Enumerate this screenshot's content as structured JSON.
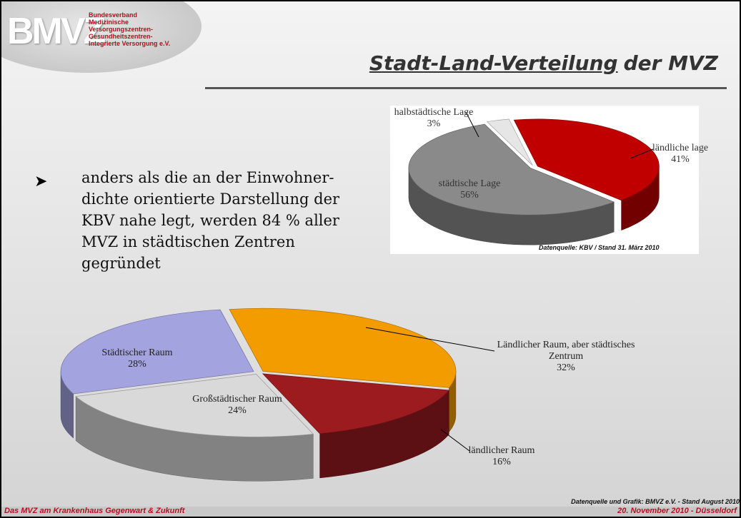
{
  "logo": {
    "mark": "BMVZ",
    "lines": [
      "Bundesverband",
      "Medizinische",
      "Versorgungszentren-",
      "Gesundheitszentren-",
      "Integrierte Versorgung e.V."
    ]
  },
  "title": {
    "underlined": "Stadt-Land-Verteilung",
    "rest": "der MVZ"
  },
  "bullet": "anders als die an der Einwohner-dichte orientierte Darstellung der KBV nahe legt, werden 84 % aller MVZ in städtischen Zentren gegründet",
  "chart_data": [
    {
      "type": "pie",
      "categories": [
        "halbstädtische Lage",
        "ländliche lage",
        "städtische Lage"
      ],
      "values": [
        3,
        41,
        56
      ],
      "value_labels": [
        "3%",
        "41%",
        "56%"
      ],
      "colors": [
        "#e6e6e6",
        "#c00000",
        "#8a8a8a"
      ],
      "source": "Datenquelle: KBV / Stand 31. März 2010"
    },
    {
      "type": "pie",
      "categories": [
        "Ländlicher Raum, aber städtisches Zentrum",
        "ländlicher Raum",
        "Großstädtischer Raum",
        "Städtischer Raum"
      ],
      "values": [
        32,
        16,
        24,
        28
      ],
      "value_labels": [
        "32%",
        "16%",
        "24%",
        "28%"
      ],
      "colors": [
        "#f39c00",
        "#9b1b1f",
        "#d9d9d9",
        "#a3a3e0"
      ],
      "source": "Datenquelle und Grafik: BMVZ e.V. - Stand August 2010"
    }
  ],
  "footer": {
    "left": "Das MVZ am Krankenhaus Gegenwart & Zukunft",
    "right": "20. November 2010 - Düsseldorf"
  }
}
